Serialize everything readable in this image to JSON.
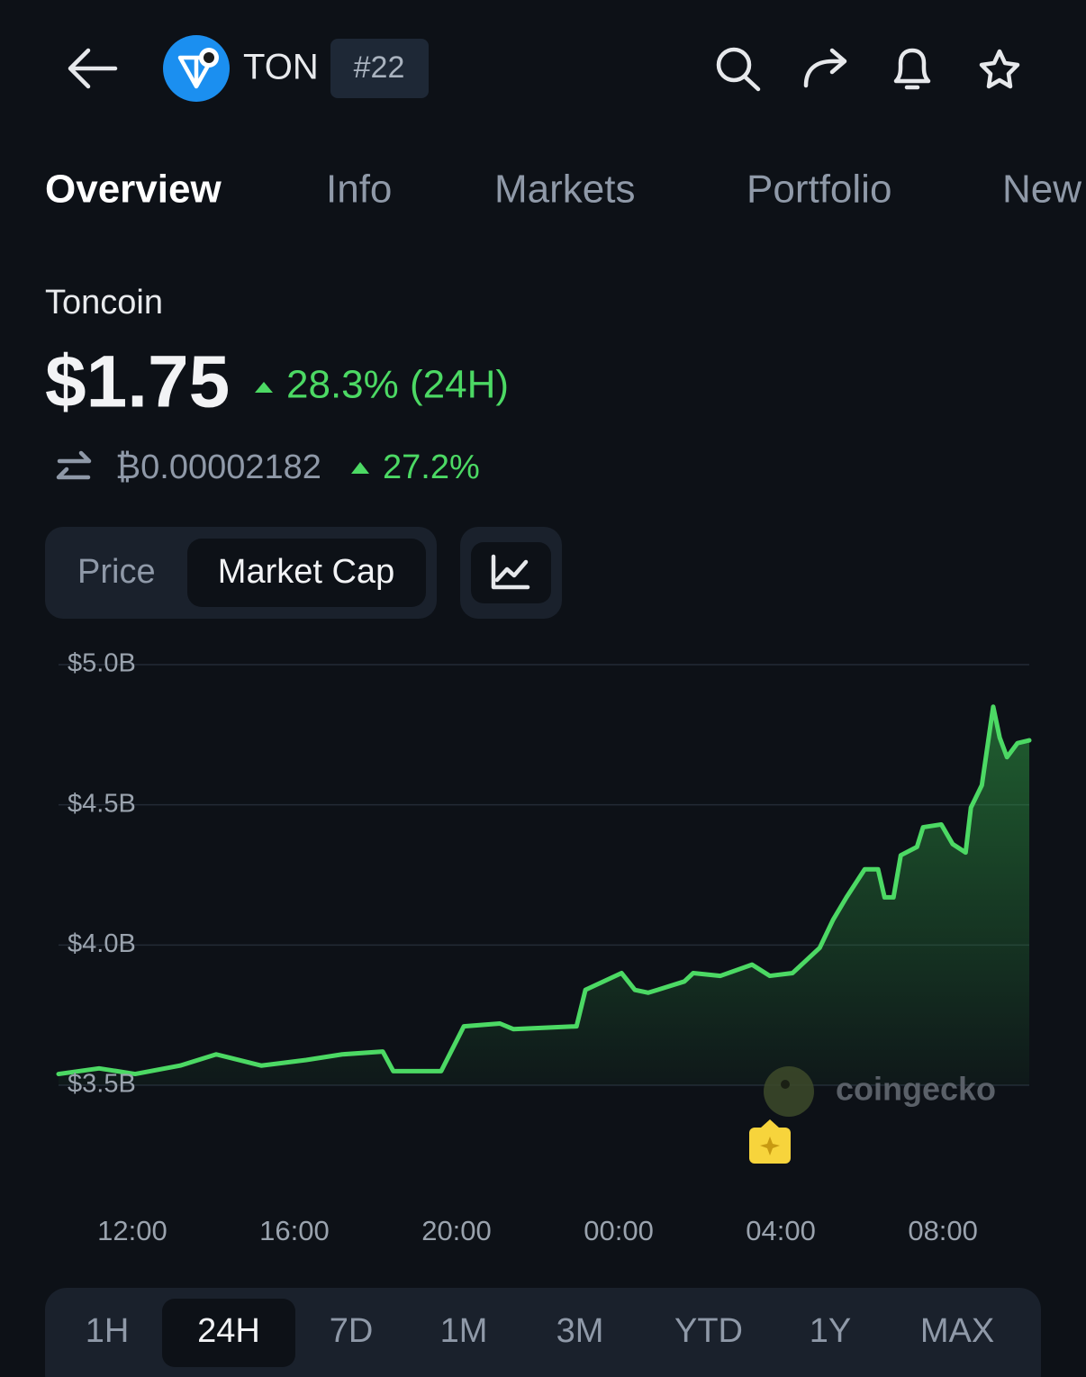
{
  "header": {
    "ticker": "TON",
    "rank": "#22"
  },
  "tabs": [
    "Overview",
    "Info",
    "Markets",
    "Portfolio",
    "New"
  ],
  "coin": {
    "name": "Toncoin",
    "price": "$1.75",
    "change": "28.3% (24H)",
    "btc_price": "₿0.00002182",
    "btc_change": "27.2%"
  },
  "toggle": [
    "Price",
    "Market Cap"
  ],
  "watermark": "coingecko",
  "ranges": [
    "1H",
    "24H",
    "7D",
    "1M",
    "3M",
    "YTD",
    "1Y",
    "MAX"
  ],
  "chart_data": {
    "type": "line",
    "x": [
      10.18,
      11.18,
      12.07,
      13.18,
      14.07,
      15.18,
      16.29,
      17.18,
      18.18,
      18.44,
      19.62,
      20.18,
      21.07,
      21.4,
      22.96,
      23.18,
      24.07,
      24.4,
      24.73,
      24.96,
      25.62,
      25.84,
      26.51,
      27.29,
      27.73,
      28.29,
      28.96,
      29.29,
      29.62,
      30.07,
      30.4,
      30.56,
      30.78,
      30.96,
      31.36,
      31.51,
      31.96,
      32.24,
      32.56,
      32.69,
      32.96,
      33.24,
      33.4,
      33.58,
      33.84,
      34.13
    ],
    "series": [
      {
        "color": "#4cd964",
        "values": [
          3.54,
          3.56,
          3.54,
          3.57,
          3.61,
          3.57,
          3.59,
          3.61,
          3.62,
          3.55,
          3.55,
          3.71,
          3.72,
          3.7,
          3.71,
          3.84,
          3.9,
          3.84,
          3.83,
          3.84,
          3.87,
          3.9,
          3.89,
          3.93,
          3.89,
          3.9,
          3.99,
          4.09,
          4.17,
          4.27,
          4.27,
          4.17,
          4.17,
          4.32,
          4.35,
          4.42,
          4.43,
          4.36,
          4.33,
          4.49,
          4.57,
          4.85,
          4.74,
          4.67,
          4.72,
          4.73
        ]
      }
    ],
    "xlim": [
      10.18,
      34.13
    ],
    "xticks": [
      {
        "value": 12,
        "label": "12:00"
      },
      {
        "value": 16,
        "label": "16:00"
      },
      {
        "value": 20,
        "label": "20:00"
      },
      {
        "value": 24,
        "label": "00:00"
      },
      {
        "value": 28,
        "label": "04:00"
      },
      {
        "value": 32,
        "label": "08:00"
      }
    ],
    "ylim": [
      3.5,
      5
    ],
    "yticks": [
      {
        "value": 3.5,
        "label": "$3.5B"
      },
      {
        "value": 4,
        "label": "$4.0B"
      },
      {
        "value": 4.5,
        "label": "$4.5B"
      },
      {
        "value": 5,
        "label": "$5.0B"
      }
    ],
    "grid": true
  }
}
